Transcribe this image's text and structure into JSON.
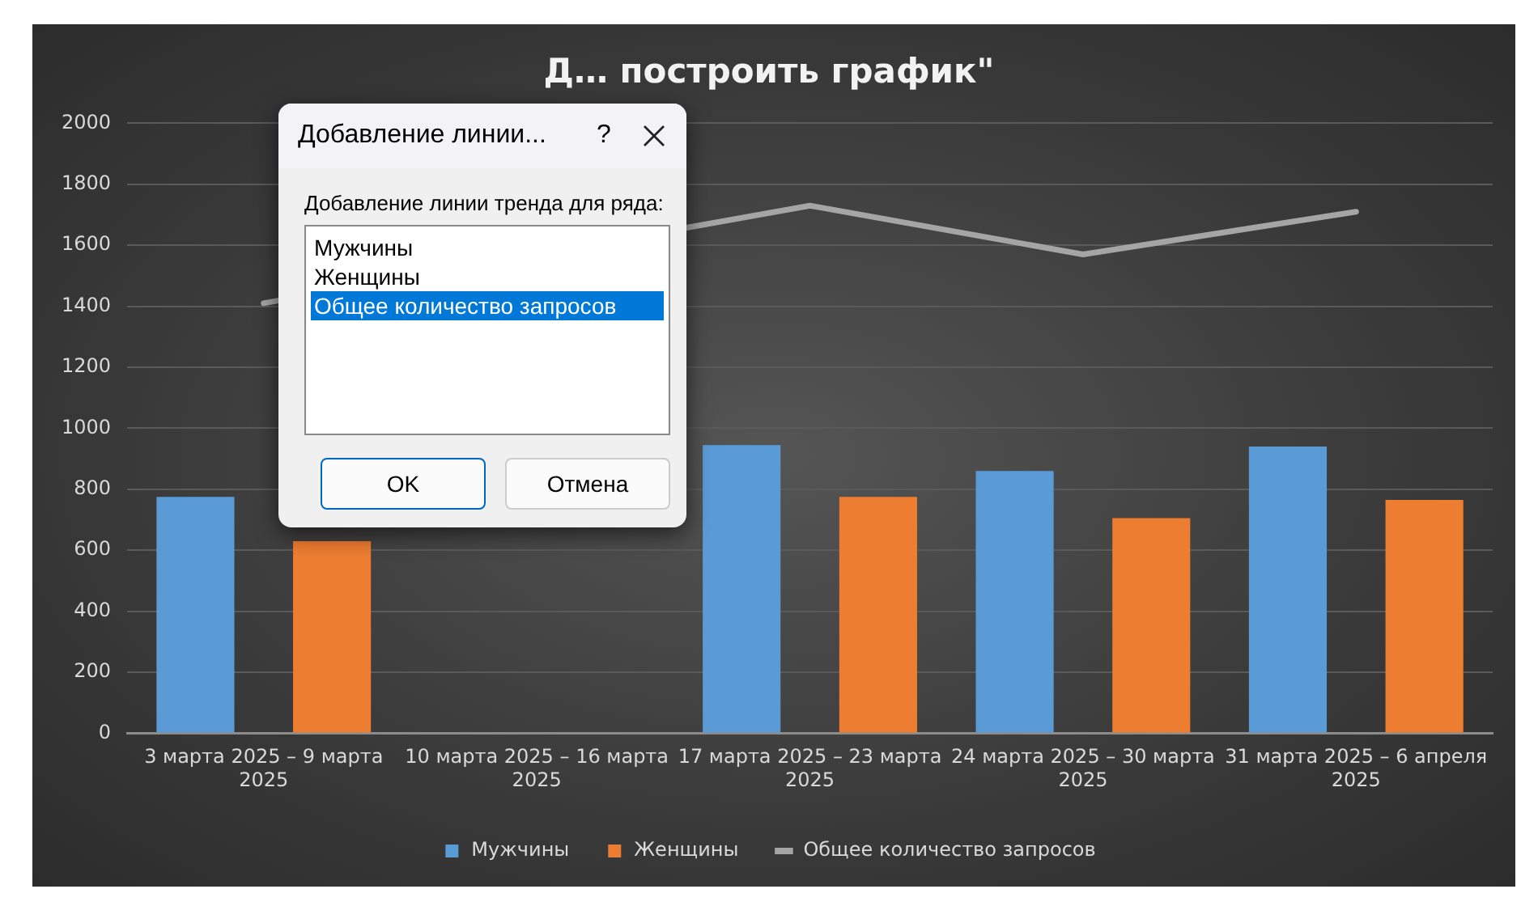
{
  "chart_data": {
    "type": "bar",
    "title": "Д… построить график\"",
    "categories": [
      "3 марта 2025 – 9 марта 2025",
      "10 марта 2025 – 16 марта 2025",
      "17 марта 2025 – 23 марта 2025",
      "24 марта 2025 – 30 марта 2025",
      "31 марта 2025 – 6 апреля 2025"
    ],
    "series": [
      {
        "name": "Мужчины",
        "color": "#5b9bd5",
        "values": [
          775,
          null,
          945,
          860,
          940
        ]
      },
      {
        "name": "Женщины",
        "color": "#ed7d31",
        "values": [
          630,
          null,
          775,
          705,
          765
        ]
      },
      {
        "name": "Общее количество запросов",
        "type": "line",
        "color": "#a5a5a5",
        "values": [
          1410,
          null,
          1730,
          1570,
          1710
        ]
      }
    ],
    "ylim": [
      0,
      2000
    ],
    "yticks": [
      0,
      200,
      400,
      600,
      800,
      1000,
      1200,
      1400,
      1600,
      1800,
      2000
    ],
    "grid": "y",
    "legend": "bottom",
    "marker": "none",
    "annotations": [
      "Добавление линии...",
      "?",
      "Добавление линии тренда для ряда:",
      "Мужчины",
      "Женщины",
      "Общее количество запросов",
      "OK",
      "Отмена"
    ]
  }
}
